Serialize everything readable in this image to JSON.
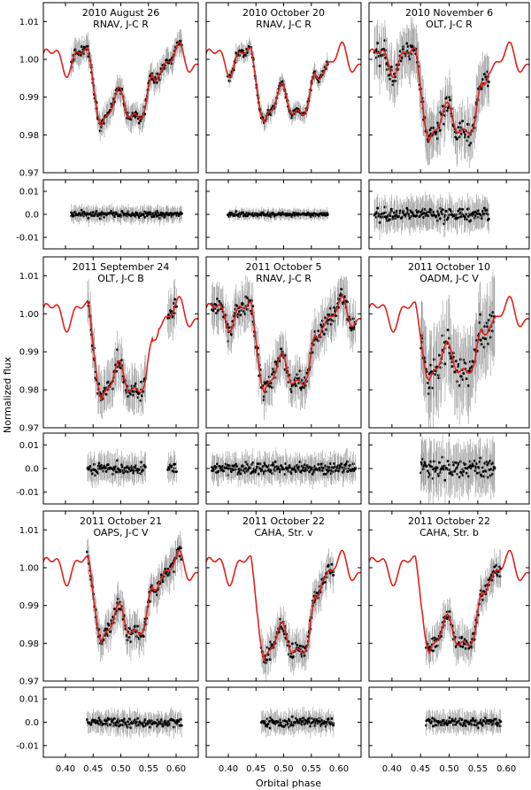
{
  "figure": {
    "ylabel": "Normalized flux",
    "xlabel": "Orbital phase"
  },
  "colors": {
    "model": "#e0201b",
    "errorbar": "#9a9a9a",
    "point": "#000000",
    "frame": "#000000"
  },
  "chart_data": [
    {
      "type": "scatter",
      "title": "2010 August 26",
      "subtitle": "RNAV, J-C R",
      "x_range": [
        0.41,
        0.61
      ],
      "depth": 0.013,
      "seed": 11,
      "err": 0.003,
      "xlim": [
        0.36,
        0.64
      ],
      "ylim": [
        0.97,
        1.015
      ],
      "resid_ylim": [
        -0.015,
        0.015
      ],
      "xticks": [
        "0.40",
        "0.45",
        "0.50",
        "0.55",
        "0.60"
      ],
      "yticks": [
        "0.97",
        "0.98",
        "0.99",
        "1.00",
        "1.01"
      ],
      "resid_yticks": [
        "-0.01",
        "0.0",
        "0.01"
      ],
      "series": [
        {
          "values": "flux + model + residuals (points estimated)"
        }
      ]
    },
    {
      "type": "scatter",
      "title": "2010 October 20",
      "subtitle": "RNAV, J-C R",
      "x_range": [
        0.4,
        0.58
      ],
      "depth": 0.012,
      "seed": 22,
      "err": 0.002,
      "xlim": [
        0.36,
        0.64
      ],
      "ylim": [
        0.97,
        1.015
      ],
      "resid_ylim": [
        -0.015,
        0.015
      ],
      "xticks": [
        "0.40",
        "0.45",
        "0.50",
        "0.55",
        "0.60"
      ],
      "yticks": [
        "0.97",
        "0.98",
        "0.99",
        "1.00",
        "1.01"
      ],
      "resid_yticks": [
        "-0.01",
        "0.0",
        "0.01"
      ],
      "series": [
        {
          "values": "estimated"
        }
      ]
    },
    {
      "type": "scatter",
      "title": "2010 November 6",
      "subtitle": "OLT, J-C R",
      "x_range": [
        0.37,
        0.57
      ],
      "depth": 0.017,
      "seed": 33,
      "err": 0.006,
      "xlim": [
        0.36,
        0.64
      ],
      "ylim": [
        0.97,
        1.015
      ],
      "resid_ylim": [
        -0.015,
        0.015
      ],
      "xticks": [
        "0.40",
        "0.45",
        "0.50",
        "0.55",
        "0.60"
      ],
      "yticks": [
        "0.97",
        "0.98",
        "0.99",
        "1.00",
        "1.01"
      ],
      "resid_yticks": [
        "-0.01",
        "0.0",
        "0.01"
      ],
      "series": [
        {
          "values": "estimated"
        }
      ]
    },
    {
      "type": "scatter",
      "title": "2011 September 24",
      "subtitle": "OLT, J-C B",
      "x_range": [
        0.44,
        0.6
      ],
      "depth": 0.018,
      "seed": 44,
      "err": 0.005,
      "gap": [
        0.545,
        0.585
      ],
      "xlim": [
        0.36,
        0.64
      ],
      "ylim": [
        0.97,
        1.015
      ],
      "resid_ylim": [
        -0.015,
        0.015
      ],
      "xticks": [
        "0.40",
        "0.45",
        "0.50",
        "0.55",
        "0.60"
      ],
      "yticks": [
        "0.97",
        "0.98",
        "0.99",
        "1.00",
        "1.01"
      ],
      "resid_yticks": [
        "-0.01",
        "0.0",
        "0.01"
      ],
      "series": [
        {
          "values": "estimated"
        }
      ]
    },
    {
      "type": "scatter",
      "title": "2011 October 5",
      "subtitle": "RNAV, J-C R",
      "x_range": [
        0.37,
        0.63
      ],
      "depth": 0.016,
      "seed": 55,
      "err": 0.005,
      "xlim": [
        0.36,
        0.64
      ],
      "ylim": [
        0.97,
        1.015
      ],
      "resid_ylim": [
        -0.015,
        0.015
      ],
      "xticks": [
        "0.40",
        "0.45",
        "0.50",
        "0.55",
        "0.60"
      ],
      "yticks": [
        "0.97",
        "0.98",
        "0.99",
        "1.00",
        "1.01"
      ],
      "resid_yticks": [
        "-0.01",
        "0.0",
        "0.01"
      ],
      "series": [
        {
          "values": "estimated"
        }
      ]
    },
    {
      "type": "scatter",
      "title": "2011 October 10",
      "subtitle": "OADM, J-C V",
      "x_range": [
        0.45,
        0.58
      ],
      "depth": 0.013,
      "seed": 66,
      "err": 0.009,
      "xlim": [
        0.36,
        0.64
      ],
      "ylim": [
        0.97,
        1.015
      ],
      "resid_ylim": [
        -0.015,
        0.015
      ],
      "xticks": [
        "0.40",
        "0.45",
        "0.50",
        "0.55",
        "0.60"
      ],
      "yticks": [
        "0.97",
        "0.98",
        "0.99",
        "1.00",
        "1.01"
      ],
      "resid_yticks": [
        "-0.01",
        "0.0",
        "0.01"
      ],
      "series": [
        {
          "values": "estimated"
        }
      ]
    },
    {
      "type": "scatter",
      "title": "2011 October 21",
      "subtitle": "OAPS, J-C V",
      "x_range": [
        0.44,
        0.61
      ],
      "depth": 0.015,
      "seed": 77,
      "err": 0.004,
      "xlim": [
        0.36,
        0.64
      ],
      "ylim": [
        0.97,
        1.015
      ],
      "resid_ylim": [
        -0.015,
        0.015
      ],
      "xticks": [
        "0.40",
        "0.45",
        "0.50",
        "0.55",
        "0.60"
      ],
      "yticks": [
        "0.97",
        "0.98",
        "0.99",
        "1.00",
        "1.01"
      ],
      "resid_yticks": [
        "-0.01",
        "0.0",
        "0.01"
      ],
      "series": [
        {
          "values": "estimated"
        }
      ]
    },
    {
      "type": "scatter",
      "title": "2011 October 22",
      "subtitle": "CAHA, Str. v",
      "x_range": [
        0.46,
        0.59
      ],
      "depth": 0.02,
      "seed": 88,
      "err": 0.004,
      "xlim": [
        0.36,
        0.64
      ],
      "ylim": [
        0.97,
        1.015
      ],
      "resid_ylim": [
        -0.015,
        0.015
      ],
      "xticks": [
        "0.40",
        "0.45",
        "0.50",
        "0.55",
        "0.60"
      ],
      "yticks": [
        "0.97",
        "0.98",
        "0.99",
        "1.00",
        "1.01"
      ],
      "resid_yticks": [
        "-0.01",
        "0.0",
        "0.01"
      ],
      "series": [
        {
          "values": "estimated"
        }
      ]
    },
    {
      "type": "scatter",
      "title": "2011 October 22",
      "subtitle": "CAHA, Str. b",
      "x_range": [
        0.46,
        0.59
      ],
      "depth": 0.018,
      "seed": 99,
      "err": 0.004,
      "xlim": [
        0.36,
        0.64
      ],
      "ylim": [
        0.97,
        1.015
      ],
      "resid_ylim": [
        -0.015,
        0.015
      ],
      "xticks": [
        "0.40",
        "0.45",
        "0.50",
        "0.55",
        "0.60"
      ],
      "yticks": [
        "0.97",
        "0.98",
        "0.99",
        "1.00",
        "1.01"
      ],
      "resid_yticks": [
        "-0.01",
        "0.0",
        "0.01"
      ],
      "series": [
        {
          "values": "estimated"
        }
      ]
    }
  ]
}
